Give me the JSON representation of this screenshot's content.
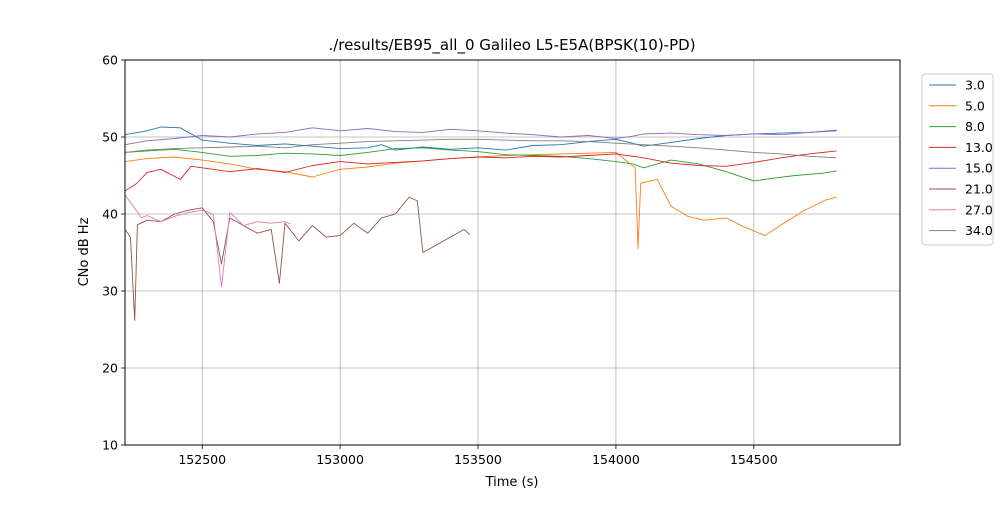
{
  "chart_data": {
    "type": "line",
    "title": "./results/EB95_all_0 Galileo L5-E5A(BPSK(10)-PD)",
    "xlabel": "Time (s)",
    "ylabel": "CNo dB Hz",
    "xlim": [
      152220,
      155030
    ],
    "ylim": [
      10,
      60
    ],
    "xticks": [
      152500,
      153000,
      153500,
      154000,
      154500
    ],
    "yticks": [
      10,
      20,
      30,
      40,
      50,
      60
    ],
    "grid": true,
    "legend_position": "outside-right",
    "series": [
      {
        "name": "3.0",
        "color": "#1f77b4",
        "points": [
          [
            152220,
            50.3
          ],
          [
            152300,
            50.8
          ],
          [
            152350,
            51.3
          ],
          [
            152420,
            51.2
          ],
          [
            152500,
            49.6
          ],
          [
            152600,
            49.2
          ],
          [
            152700,
            48.9
          ],
          [
            152800,
            49.1
          ],
          [
            152900,
            48.8
          ],
          [
            153000,
            48.5
          ],
          [
            153100,
            48.6
          ],
          [
            153150,
            49.0
          ],
          [
            153200,
            48.3
          ],
          [
            153300,
            48.7
          ],
          [
            153400,
            48.4
          ],
          [
            153500,
            48.6
          ],
          [
            153600,
            48.3
          ],
          [
            153700,
            48.9
          ],
          [
            153800,
            49.0
          ],
          [
            153900,
            49.4
          ],
          [
            154000,
            49.7
          ],
          [
            154060,
            49.2
          ],
          [
            154100,
            48.8
          ],
          [
            154200,
            49.3
          ],
          [
            154300,
            49.8
          ],
          [
            154400,
            50.2
          ],
          [
            154500,
            50.4
          ],
          [
            154600,
            50.5
          ],
          [
            154700,
            50.6
          ],
          [
            154800,
            50.8
          ]
        ]
      },
      {
        "name": "5.0",
        "color": "#ff7f0e",
        "points": [
          [
            152220,
            46.8
          ],
          [
            152300,
            47.2
          ],
          [
            152400,
            47.4
          ],
          [
            152500,
            47.0
          ],
          [
            152600,
            46.5
          ],
          [
            152700,
            45.8
          ],
          [
            152800,
            45.5
          ],
          [
            152900,
            44.8
          ],
          [
            153000,
            45.8
          ],
          [
            153100,
            46.1
          ],
          [
            153200,
            46.6
          ],
          [
            153300,
            46.9
          ],
          [
            153400,
            47.2
          ],
          [
            153500,
            47.4
          ],
          [
            153600,
            47.6
          ],
          [
            153700,
            47.7
          ],
          [
            153800,
            47.8
          ],
          [
            153900,
            47.9
          ],
          [
            154000,
            48.0
          ],
          [
            154070,
            46.0
          ],
          [
            154080,
            35.5
          ],
          [
            154090,
            44.0
          ],
          [
            154150,
            44.5
          ],
          [
            154200,
            41.0
          ],
          [
            154260,
            39.7
          ],
          [
            154320,
            39.2
          ],
          [
            154400,
            39.5
          ],
          [
            154460,
            38.4
          ],
          [
            154540,
            37.2
          ],
          [
            154600,
            38.6
          ],
          [
            154680,
            40.4
          ],
          [
            154760,
            41.8
          ],
          [
            154800,
            42.2
          ]
        ]
      },
      {
        "name": "8.0",
        "color": "#2ca02c",
        "points": [
          [
            152220,
            48.0
          ],
          [
            152300,
            48.2
          ],
          [
            152400,
            48.4
          ],
          [
            152500,
            48.0
          ],
          [
            152600,
            47.5
          ],
          [
            152700,
            47.6
          ],
          [
            152800,
            47.9
          ],
          [
            152900,
            47.8
          ],
          [
            153000,
            47.6
          ],
          [
            153100,
            48.0
          ],
          [
            153200,
            48.5
          ],
          [
            153300,
            48.6
          ],
          [
            153400,
            48.3
          ],
          [
            153500,
            48.1
          ],
          [
            153600,
            47.7
          ],
          [
            153700,
            47.6
          ],
          [
            153800,
            47.5
          ],
          [
            153900,
            47.2
          ],
          [
            154000,
            46.8
          ],
          [
            154060,
            46.5
          ],
          [
            154100,
            46.0
          ],
          [
            154200,
            47.0
          ],
          [
            154300,
            46.5
          ],
          [
            154400,
            45.5
          ],
          [
            154500,
            44.3
          ],
          [
            154560,
            44.6
          ],
          [
            154650,
            45.0
          ],
          [
            154750,
            45.3
          ],
          [
            154800,
            45.6
          ]
        ]
      },
      {
        "name": "13.0",
        "color": "#d62728",
        "points": [
          [
            152220,
            43.0
          ],
          [
            152260,
            43.9
          ],
          [
            152300,
            45.4
          ],
          [
            152350,
            45.8
          ],
          [
            152420,
            44.5
          ],
          [
            152460,
            46.2
          ],
          [
            152500,
            46.0
          ],
          [
            152600,
            45.5
          ],
          [
            152700,
            45.9
          ],
          [
            152800,
            45.4
          ],
          [
            152900,
            46.3
          ],
          [
            153000,
            46.8
          ],
          [
            153100,
            46.5
          ],
          [
            153200,
            46.7
          ],
          [
            153300,
            46.9
          ],
          [
            153400,
            47.2
          ],
          [
            153500,
            47.4
          ],
          [
            153600,
            47.3
          ],
          [
            153700,
            47.5
          ],
          [
            153800,
            47.4
          ],
          [
            153900,
            47.6
          ],
          [
            154000,
            47.8
          ],
          [
            154100,
            47.3
          ],
          [
            154200,
            46.6
          ],
          [
            154300,
            46.3
          ],
          [
            154400,
            46.2
          ],
          [
            154500,
            46.7
          ],
          [
            154600,
            47.3
          ],
          [
            154700,
            47.8
          ],
          [
            154800,
            48.2
          ]
        ]
      },
      {
        "name": "15.0",
        "color": "#9467bd",
        "points": [
          [
            152220,
            49.0
          ],
          [
            152300,
            49.5
          ],
          [
            152400,
            49.8
          ],
          [
            152500,
            50.2
          ],
          [
            152600,
            50.0
          ],
          [
            152700,
            50.4
          ],
          [
            152800,
            50.6
          ],
          [
            152900,
            51.2
          ],
          [
            153000,
            50.8
          ],
          [
            153100,
            51.1
          ],
          [
            153200,
            50.7
          ],
          [
            153300,
            50.6
          ],
          [
            153400,
            51.0
          ],
          [
            153500,
            50.8
          ],
          [
            153600,
            50.5
          ],
          [
            153700,
            50.3
          ],
          [
            153800,
            50.0
          ],
          [
            153900,
            50.2
          ],
          [
            154000,
            49.8
          ],
          [
            154060,
            50.1
          ],
          [
            154100,
            50.4
          ],
          [
            154200,
            50.5
          ],
          [
            154300,
            50.3
          ],
          [
            154400,
            50.2
          ],
          [
            154500,
            50.4
          ],
          [
            154600,
            50.3
          ],
          [
            154700,
            50.6
          ],
          [
            154800,
            50.9
          ]
        ]
      },
      {
        "name": "21.0",
        "color": "#8c564b",
        "points": [
          [
            152220,
            38.0
          ],
          [
            152240,
            37.0
          ],
          [
            152255,
            26.2
          ],
          [
            152265,
            38.6
          ],
          [
            152300,
            39.2
          ],
          [
            152350,
            39.0
          ],
          [
            152400,
            40.0
          ],
          [
            152450,
            40.5
          ],
          [
            152500,
            40.8
          ],
          [
            152540,
            39.0
          ],
          [
            152570,
            33.5
          ],
          [
            152600,
            39.5
          ],
          [
            152650,
            38.5
          ],
          [
            152700,
            37.5
          ],
          [
            152750,
            38.0
          ],
          [
            152780,
            31.0
          ],
          [
            152800,
            38.8
          ],
          [
            152850,
            36.5
          ],
          [
            152900,
            38.5
          ],
          [
            152950,
            37.0
          ],
          [
            153000,
            37.2
          ],
          [
            153050,
            38.8
          ],
          [
            153100,
            37.5
          ],
          [
            153150,
            39.5
          ],
          [
            153200,
            40.0
          ],
          [
            153250,
            42.2
          ],
          [
            153280,
            41.7
          ],
          [
            153300,
            35.0
          ],
          [
            153350,
            36.0
          ],
          [
            153400,
            37.0
          ],
          [
            153450,
            38.0
          ],
          [
            153470,
            37.3
          ]
        ]
      },
      {
        "name": "27.0",
        "color": "#e377c2",
        "points": [
          [
            152220,
            42.5
          ],
          [
            152250,
            41.0
          ],
          [
            152280,
            39.5
          ],
          [
            152300,
            39.8
          ],
          [
            152350,
            39.0
          ],
          [
            152400,
            39.7
          ],
          [
            152450,
            40.2
          ],
          [
            152500,
            40.5
          ],
          [
            152540,
            40.0
          ],
          [
            152570,
            30.5
          ],
          [
            152600,
            40.2
          ],
          [
            152650,
            38.5
          ],
          [
            152700,
            39.0
          ],
          [
            152750,
            38.8
          ],
          [
            152800,
            39.0
          ],
          [
            152820,
            38.7
          ]
        ]
      },
      {
        "name": "34.0",
        "color": "#7f7f7f",
        "points": [
          [
            152220,
            48.0
          ],
          [
            152300,
            48.3
          ],
          [
            152400,
            48.5
          ],
          [
            152500,
            48.6
          ],
          [
            152600,
            48.7
          ],
          [
            152700,
            48.8
          ],
          [
            152800,
            48.6
          ],
          [
            152900,
            49.0
          ],
          [
            153000,
            49.2
          ],
          [
            153100,
            49.4
          ],
          [
            153200,
            49.5
          ],
          [
            153300,
            49.6
          ],
          [
            153400,
            49.7
          ],
          [
            153500,
            49.7
          ],
          [
            153600,
            49.6
          ],
          [
            153700,
            49.5
          ],
          [
            153800,
            49.5
          ],
          [
            153900,
            49.4
          ],
          [
            154000,
            49.2
          ],
          [
            154100,
            49.0
          ],
          [
            154200,
            48.8
          ],
          [
            154300,
            48.6
          ],
          [
            154400,
            48.3
          ],
          [
            154500,
            48.0
          ],
          [
            154600,
            47.8
          ],
          [
            154700,
            47.5
          ],
          [
            154800,
            47.3
          ]
        ]
      }
    ]
  }
}
